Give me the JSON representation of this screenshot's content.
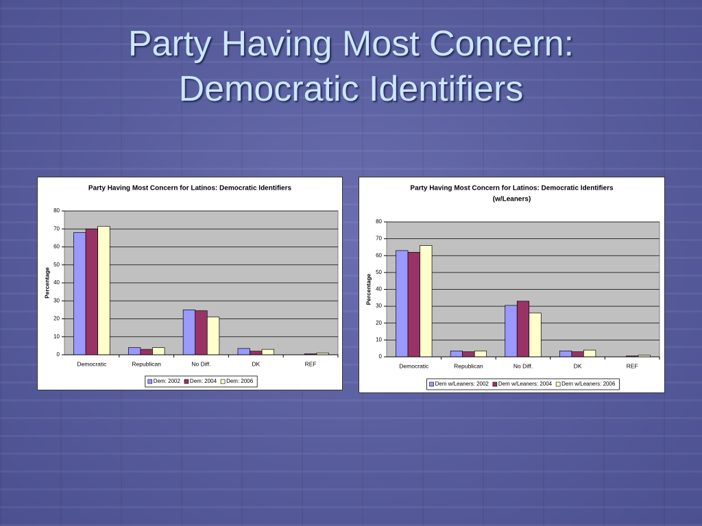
{
  "slide": {
    "title": [
      "Party Having Most Concern:",
      "Democratic Identifiers"
    ]
  },
  "chart_data": [
    {
      "type": "bar",
      "title": "Party Having Most Concern for Latinos: Democratic Identifiers",
      "y_label": "Percentage",
      "categories": [
        "Democratic",
        "Republican",
        "No Diff.",
        "DK",
        "REF"
      ],
      "series": [
        {
          "name": "Dem: 2002",
          "color": "#9999ff",
          "values": [
            68,
            4,
            25,
            3.5,
            0
          ]
        },
        {
          "name": "Dem: 2004",
          "color": "#993366",
          "values": [
            70,
            3,
            24.5,
            2,
            0.5
          ]
        },
        {
          "name": "Dem: 2006",
          "color": "#ffffcc",
          "values": [
            71.5,
            4,
            21,
            3,
            1
          ]
        }
      ],
      "ylim": [
        0,
        80
      ],
      "yticks": [
        0,
        10,
        20,
        30,
        40,
        50,
        60,
        70,
        80
      ],
      "grid": true,
      "legend": "bottom"
    },
    {
      "type": "bar",
      "title": "Party Having Most Concern for Latinos: Democratic Identifiers",
      "subtitle": "(w/Leaners)",
      "y_label": "Percentage",
      "categories": [
        "Democratic",
        "Republican",
        "No Diff.",
        "DK",
        "REF"
      ],
      "series": [
        {
          "name": "Dem w/Leaners: 2002",
          "color": "#9999ff",
          "values": [
            63,
            3.5,
            30.5,
            3.5,
            0
          ]
        },
        {
          "name": "Dem w/Leaners: 2004",
          "color": "#993366",
          "values": [
            62,
            3,
            33,
            3,
            0.5
          ]
        },
        {
          "name": "Dem w/Leaners: 2006",
          "color": "#ffffcc",
          "values": [
            66,
            3.5,
            26,
            4,
            1
          ]
        }
      ],
      "ylim": [
        0,
        80
      ],
      "yticks": [
        0,
        10,
        20,
        30,
        40,
        50,
        60,
        70,
        80
      ],
      "grid": true,
      "legend": "bottom"
    }
  ]
}
